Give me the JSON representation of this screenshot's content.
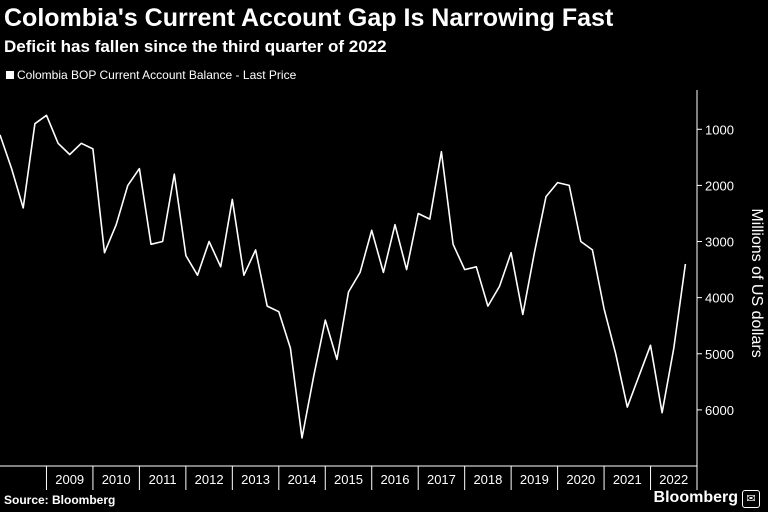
{
  "header": {
    "title": "Colombia's Current Account Gap Is Narrowing Fast",
    "subtitle": "Deficit has fallen since the third quarter of 2022"
  },
  "footer": {
    "source": "Source: Bloomberg",
    "brand": "Bloomberg",
    "brand_mark": "✉"
  },
  "colors": {
    "background": "#000000",
    "line": "#ffffff"
  },
  "chart_data": {
    "type": "line",
    "title": "Colombia's Current Account Gap Is Narrowing Fast",
    "subtitle": "Deficit has fallen since the third quarter of 2022",
    "ylabel": "Millions of US dollars",
    "y_inverted": true,
    "ylim": [
      300,
      7000
    ],
    "yticks": [
      1000,
      2000,
      3000,
      4000,
      5000,
      6000
    ],
    "x_categories": [
      "2009",
      "2010",
      "2011",
      "2012",
      "2013",
      "2014",
      "2015",
      "2016",
      "2017",
      "2018",
      "2019",
      "2020",
      "2021",
      "2022"
    ],
    "grid": false,
    "legend_position": "top-left",
    "series": [
      {
        "name": "Colombia BOP Current Account Balance - Last Price",
        "x": [
          2008.0,
          2008.25,
          2008.5,
          2008.75,
          2009.0,
          2009.25,
          2009.5,
          2009.75,
          2010.0,
          2010.25,
          2010.5,
          2010.75,
          2011.0,
          2011.25,
          2011.5,
          2011.75,
          2012.0,
          2012.25,
          2012.5,
          2012.75,
          2013.0,
          2013.25,
          2013.5,
          2013.75,
          2014.0,
          2014.25,
          2014.5,
          2014.75,
          2015.0,
          2015.25,
          2015.5,
          2015.75,
          2016.0,
          2016.25,
          2016.5,
          2016.75,
          2017.0,
          2017.25,
          2017.5,
          2017.75,
          2018.0,
          2018.25,
          2018.5,
          2018.75,
          2019.0,
          2019.25,
          2019.5,
          2019.75,
          2020.0,
          2020.25,
          2020.5,
          2020.75,
          2021.0,
          2021.25,
          2021.5,
          2021.75,
          2022.0,
          2022.25,
          2022.5,
          2022.75
        ],
        "values": [
          1100,
          1700,
          2400,
          900,
          750,
          1250,
          1450,
          1250,
          1350,
          3200,
          2700,
          2000,
          1700,
          3050,
          3000,
          1800,
          3250,
          3600,
          3000,
          3450,
          2250,
          3600,
          3150,
          4150,
          4250,
          4900,
          6500,
          5400,
          4400,
          5100,
          3900,
          3550,
          2800,
          3550,
          2700,
          3500,
          2500,
          2600,
          1400,
          3050,
          3500,
          3450,
          4150,
          3800,
          3200,
          4300,
          3200,
          2200,
          1950,
          2000,
          3000,
          3150,
          4200,
          5000,
          5950,
          5400,
          4850,
          6050,
          4900,
          3400
        ]
      }
    ]
  }
}
